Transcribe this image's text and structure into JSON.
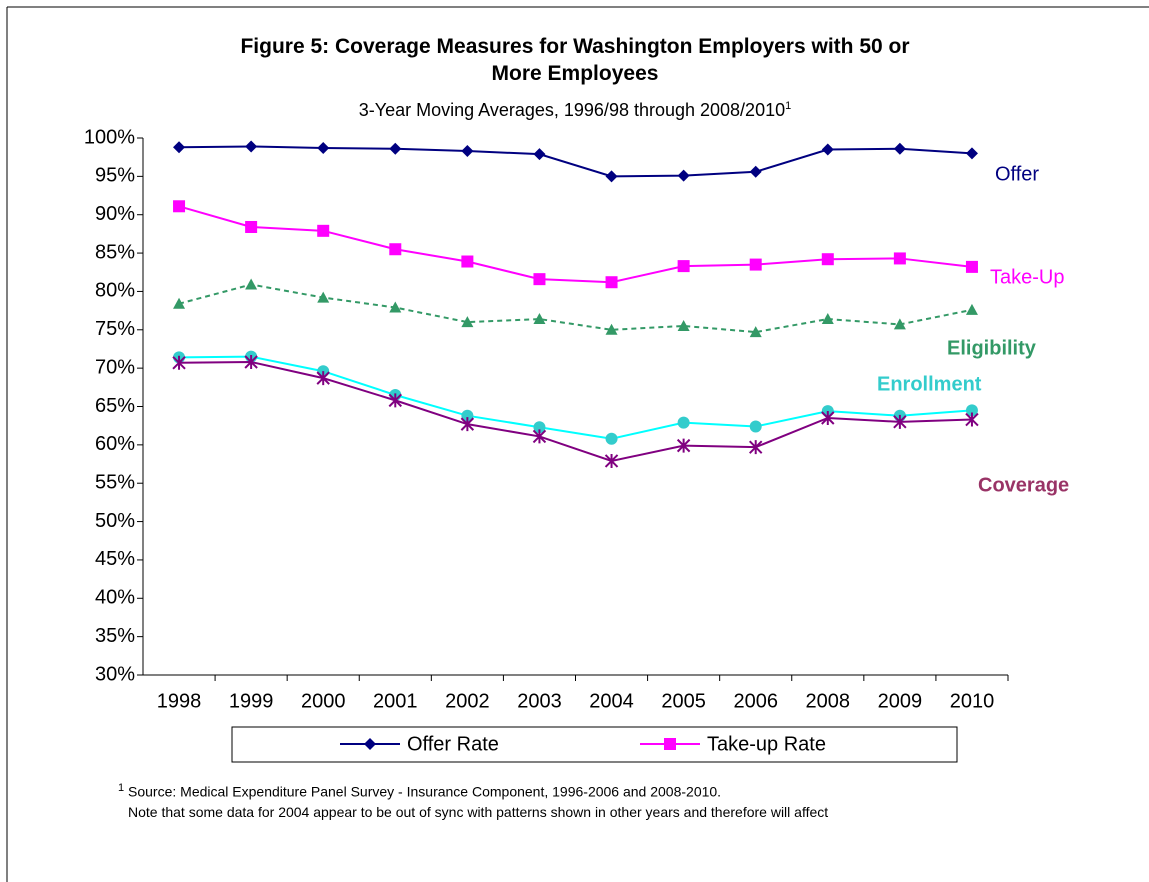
{
  "chart_data": {
    "type": "line",
    "title": "Figure 5: Coverage Measures for Washington Employers with 50 or More Employees",
    "subtitle": "3-Year Moving Averages, 1996/98 through 2008/2010",
    "subtitle_mark": "1",
    "categories": [
      "1998",
      "1999",
      "2000",
      "2001",
      "2002",
      "2003",
      "2004",
      "2005",
      "2006",
      "2008",
      "2009",
      "2010"
    ],
    "series": [
      {
        "name": "Offer Rate",
        "label": "Offer",
        "color": "#000080",
        "label_color": "#000080",
        "marker": "diamond",
        "dashed": false,
        "bold": false,
        "values": [
          98.8,
          98.9,
          98.7,
          98.6,
          98.3,
          97.9,
          95.0,
          95.1,
          95.6,
          98.5,
          98.6,
          98.0
        ]
      },
      {
        "name": "Take-up Rate",
        "label": "Take-Up",
        "color": "#FF00FF",
        "label_color": "#FF00FF",
        "marker": "square",
        "dashed": false,
        "bold": false,
        "values": [
          91.1,
          88.4,
          87.9,
          85.5,
          83.9,
          81.6,
          81.2,
          83.3,
          83.5,
          84.2,
          84.3,
          83.2
        ]
      },
      {
        "label": "Eligibility",
        "color": "#339966",
        "label_color": "#339966",
        "marker": "triangle",
        "dashed": true,
        "bold": true,
        "values": [
          78.4,
          80.9,
          79.2,
          77.9,
          76.0,
          76.4,
          75.0,
          75.5,
          74.7,
          76.4,
          75.7,
          77.6
        ]
      },
      {
        "label": "Enrollment",
        "color": "#00FFFF",
        "label_color": "#33CCCC",
        "marker": "circle",
        "marker_color": "#33CCCC",
        "dashed": false,
        "bold": true,
        "values": [
          71.4,
          71.5,
          69.6,
          66.5,
          63.8,
          62.3,
          60.8,
          62.9,
          62.4,
          64.4,
          63.8,
          64.5
        ]
      },
      {
        "label": "Coverage",
        "color": "#800080",
        "label_color": "#993366",
        "marker": "asterisk",
        "dashed": false,
        "bold": true,
        "values": [
          70.7,
          70.8,
          68.7,
          65.8,
          62.7,
          61.1,
          57.9,
          59.9,
          59.7,
          63.5,
          63.0,
          63.3
        ]
      }
    ],
    "ylim": [
      30,
      100
    ],
    "yticks": [
      {
        "value": 30,
        "label": "30%"
      },
      {
        "value": 35,
        "label": "35%"
      },
      {
        "value": 40,
        "label": "40%"
      },
      {
        "value": 45,
        "label": "45%"
      },
      {
        "value": 50,
        "label": "50%"
      },
      {
        "value": 55,
        "label": "55%"
      },
      {
        "value": 60,
        "label": "60%"
      },
      {
        "value": 65,
        "label": "65%"
      },
      {
        "value": 70,
        "label": "70%"
      },
      {
        "value": 75,
        "label": "75%"
      },
      {
        "value": 80,
        "label": "80%"
      },
      {
        "value": 85,
        "label": "85%"
      },
      {
        "value": 90,
        "label": "90%"
      },
      {
        "value": 95,
        "label": "95%"
      },
      {
        "value": 100,
        "label": "100%"
      }
    ],
    "grid": false,
    "footnote_mark": "1",
    "footnote": [
      "Source:  Medical Expenditure Panel Survey - Insurance Component, 1996-2006 and 2008-2010.",
      "Note that some data for 2004 appear to be out of sync with patterns shown in other years and therefore will affect"
    ]
  }
}
